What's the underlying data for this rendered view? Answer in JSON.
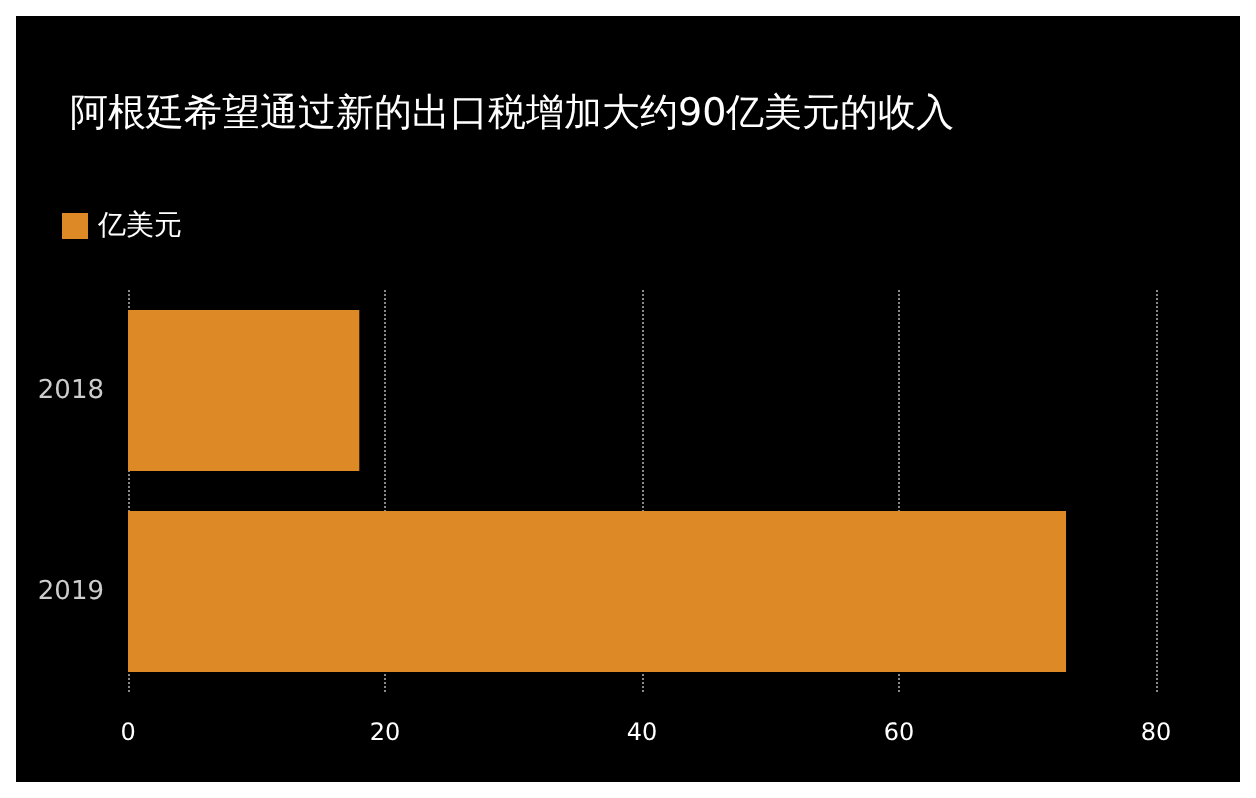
{
  "chart_data": {
    "type": "bar",
    "orientation": "horizontal",
    "title": "阿根廷希望通过新的出口税增加大约90亿美元的收入",
    "categories": [
      "2018",
      "2019"
    ],
    "series": [
      {
        "name": "亿美元",
        "color": "#dd8a26",
        "values": [
          18,
          73
        ]
      }
    ],
    "xlim": [
      0,
      80
    ],
    "xticks": [
      0,
      20,
      40,
      60,
      80
    ],
    "grid": "x",
    "legend": "top left"
  }
}
